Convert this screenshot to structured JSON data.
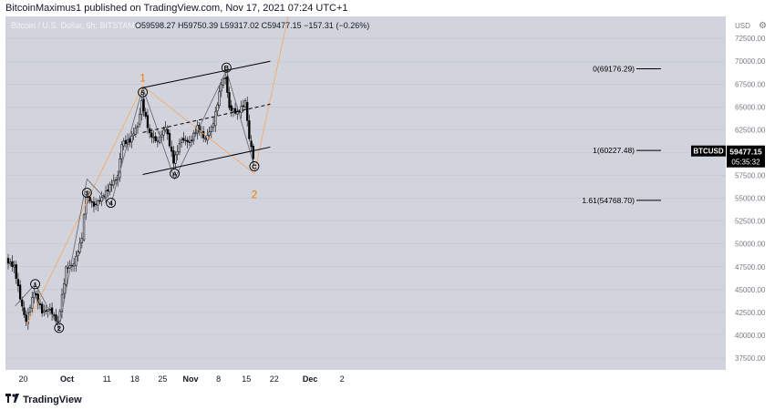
{
  "header": {
    "publish_line": "BitcoinMaximus1 published on TradingView.com, Nov 17, 2021 07:24 UTC+1"
  },
  "legend": {
    "symbol_line": "Bitcoin / U.S. Dollar, 6h, BITSTAMP",
    "ohlc": "O59598.27  H59750.39  L59317.02  C59477.15  −157.31 (−0.26%)"
  },
  "footer": {
    "brand": "TradingView"
  },
  "colors": {
    "background": "#d1d4dc",
    "candle": "#000000",
    "wave_line": "#6a6d78",
    "orange_line": "#f7a96b",
    "orange_label": "#f57c00",
    "channel": "#000000",
    "price_tag": "#000000"
  },
  "chart_data": {
    "type": "candlestick",
    "title": "Bitcoin / U.S. Dollar, 6h, BITSTAMP",
    "y_axis_unit": "USD",
    "ylim": [
      37500,
      75000
    ],
    "y_ticks": [
      "37500.00",
      "40000.00",
      "42500.00",
      "45000.00",
      "47500.00",
      "50000.00",
      "52500.00",
      "55000.00",
      "57500.00",
      "60000.00",
      "62500.00",
      "65000.00",
      "67500.00",
      "70000.00",
      "72500.00"
    ],
    "x_ticks": [
      "20",
      "Oct",
      "11",
      "18",
      "25",
      "Nov",
      "8",
      "15",
      "22",
      "Dec",
      "2"
    ],
    "last_price": {
      "symbol": "BTCUSD",
      "value": "59477.15",
      "countdown": "05:35:32"
    },
    "wave_labels": [
      {
        "text": "1",
        "style": "circled",
        "date": "Sep 23",
        "price": 45600
      },
      {
        "text": "2",
        "style": "circled",
        "date": "Sep 29",
        "price": 40800
      },
      {
        "text": "3",
        "style": "circled",
        "date": "Oct 6",
        "price": 55600
      },
      {
        "text": "4",
        "style": "circled",
        "date": "Oct 12",
        "price": 54500
      },
      {
        "text": "5",
        "style": "circled",
        "date": "Oct 20",
        "price": 66600
      },
      {
        "text": "A",
        "style": "circled",
        "date": "Oct 28",
        "price": 57700
      },
      {
        "text": "B",
        "style": "circled",
        "date": "Nov 10",
        "price": 69300
      },
      {
        "text": "C",
        "style": "circled",
        "date": "Nov 17",
        "price": 58500
      },
      {
        "text": "1",
        "style": "orange",
        "date": "Oct 20",
        "price": 68200
      },
      {
        "text": "2",
        "style": "orange",
        "date": "Nov 17",
        "price": 55400
      }
    ],
    "fib_levels": [
      {
        "label": "0(69176.29)",
        "price": 69176.29
      },
      {
        "label": "1(60227.48)",
        "price": 60227.48
      },
      {
        "label": "1.61(54768.70)",
        "price": 54768.7
      }
    ],
    "channel": {
      "upper": [
        [
          "Oct 20",
          67100
        ],
        [
          "Nov 21",
          70000
        ]
      ],
      "middle": [
        [
          "Oct 20",
          62200
        ],
        [
          "Nov 21",
          65300
        ]
      ],
      "lower": [
        [
          "Oct 20",
          57600
        ],
        [
          "Nov 21",
          60600
        ]
      ]
    },
    "wave_path": [
      [
        "Sep 18",
        43200
      ],
      [
        "Sep 23",
        45600
      ],
      [
        "Sep 29",
        40800
      ],
      [
        "Oct 6",
        57100
      ],
      [
        "Oct 12",
        54300
      ],
      [
        "Oct 20",
        67100
      ],
      [
        "Oct 28",
        57100
      ],
      [
        "Nov 10",
        69000
      ],
      [
        "Nov 17",
        58500
      ]
    ],
    "orange_path": [
      [
        "Sep 21",
        41200
      ],
      [
        "Oct 20",
        67300
      ],
      [
        "Nov 17",
        57700
      ],
      [
        "Nov 27",
        78000
      ]
    ],
    "candles_approx_close": [
      [
        "Sep 16",
        48200
      ],
      [
        "Sep 18",
        47500
      ],
      [
        "Sep 20",
        43000
      ],
      [
        "Sep 21",
        41500
      ],
      [
        "Sep 23",
        44800
      ],
      [
        "Sep 25",
        42600
      ],
      [
        "Sep 27",
        42800
      ],
      [
        "Sep 29",
        41300
      ],
      [
        "Oct 1",
        47300
      ],
      [
        "Oct 3",
        47800
      ],
      [
        "Oct 5",
        50700
      ],
      [
        "Oct 6",
        55300
      ],
      [
        "Oct 8",
        54200
      ],
      [
        "Oct 10",
        55000
      ],
      [
        "Oct 12",
        56300
      ],
      [
        "Oct 14",
        57400
      ],
      [
        "Oct 15",
        61000
      ],
      [
        "Oct 17",
        61300
      ],
      [
        "Oct 19",
        63000
      ],
      [
        "Oct 20",
        65600
      ],
      [
        "Oct 22",
        62000
      ],
      [
        "Oct 24",
        61200
      ],
      [
        "Oct 26",
        62800
      ],
      [
        "Oct 28",
        59000
      ],
      [
        "Oct 30",
        61500
      ],
      [
        "Nov 1",
        61100
      ],
      [
        "Nov 3",
        62800
      ],
      [
        "Nov 5",
        61400
      ],
      [
        "Nov 7",
        63200
      ],
      [
        "Nov 9",
        67600
      ],
      [
        "Nov 10",
        68300
      ],
      [
        "Nov 11",
        64900
      ],
      [
        "Nov 13",
        64300
      ],
      [
        "Nov 15",
        65500
      ],
      [
        "Nov 16",
        61500
      ],
      [
        "Nov 17",
        59477
      ]
    ]
  }
}
